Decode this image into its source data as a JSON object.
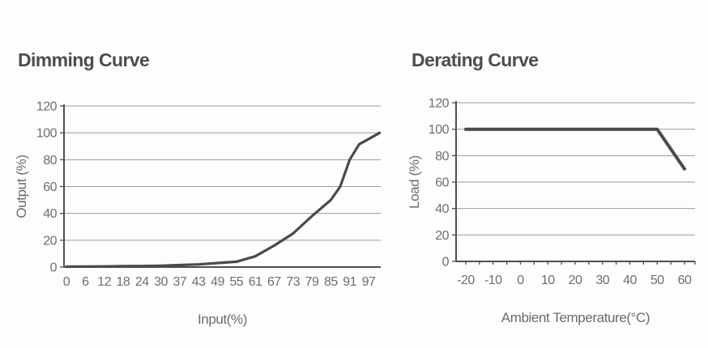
{
  "page": {
    "background": "#fdfdfd",
    "title_color": "#4d4d4d",
    "label_color": "#6e6e6e",
    "grid_color": "#9b9b9b",
    "axis_color": "#4f4f4f",
    "line_color": "#4a4a4a"
  },
  "chart_data": [
    {
      "type": "line",
      "title": "Dimming Curve",
      "xlabel": "Input(%)",
      "ylabel": "Output (%)",
      "x_ticks": [
        0,
        6,
        12,
        18,
        24,
        30,
        37,
        43,
        49,
        55,
        61,
        67,
        73,
        79,
        85,
        91,
        97
      ],
      "y_ticks": [
        0,
        20,
        40,
        60,
        80,
        100,
        120
      ],
      "ylim": [
        0,
        120
      ],
      "grid": "horizontal",
      "legend": "none",
      "series": [
        {
          "name": "output-vs-input",
          "points": [
            [
              0,
              0.3
            ],
            [
              6,
              0.4
            ],
            [
              12,
              0.5
            ],
            [
              18,
              0.7
            ],
            [
              24,
              0.8
            ],
            [
              30,
              1
            ],
            [
              37,
              1.5
            ],
            [
              43,
              2
            ],
            [
              49,
              3
            ],
            [
              55,
              4
            ],
            [
              61,
              8
            ],
            [
              67,
              16
            ],
            [
              73,
              25
            ],
            [
              79,
              38
            ],
            [
              85,
              50
            ],
            [
              88,
              60
            ],
            [
              91,
              80
            ],
            [
              94,
              91.5
            ],
            [
              100.5,
              100
            ]
          ]
        }
      ]
    },
    {
      "type": "line",
      "title": "Derating Curve",
      "xlabel": "Ambient Temperature(°C)",
      "ylabel": "Load (%)",
      "x_ticks": [
        -20,
        -10,
        0,
        10,
        20,
        30,
        40,
        50,
        60
      ],
      "x_minor_step": 5,
      "y_ticks": [
        0,
        20,
        40,
        60,
        80,
        100,
        120
      ],
      "ylim": [
        0,
        120
      ],
      "grid": "horizontal",
      "legend": "none",
      "series": [
        {
          "name": "load-vs-temperature",
          "points": [
            [
              -20,
              100
            ],
            [
              50,
              100
            ],
            [
              60,
              70
            ]
          ]
        }
      ]
    }
  ]
}
